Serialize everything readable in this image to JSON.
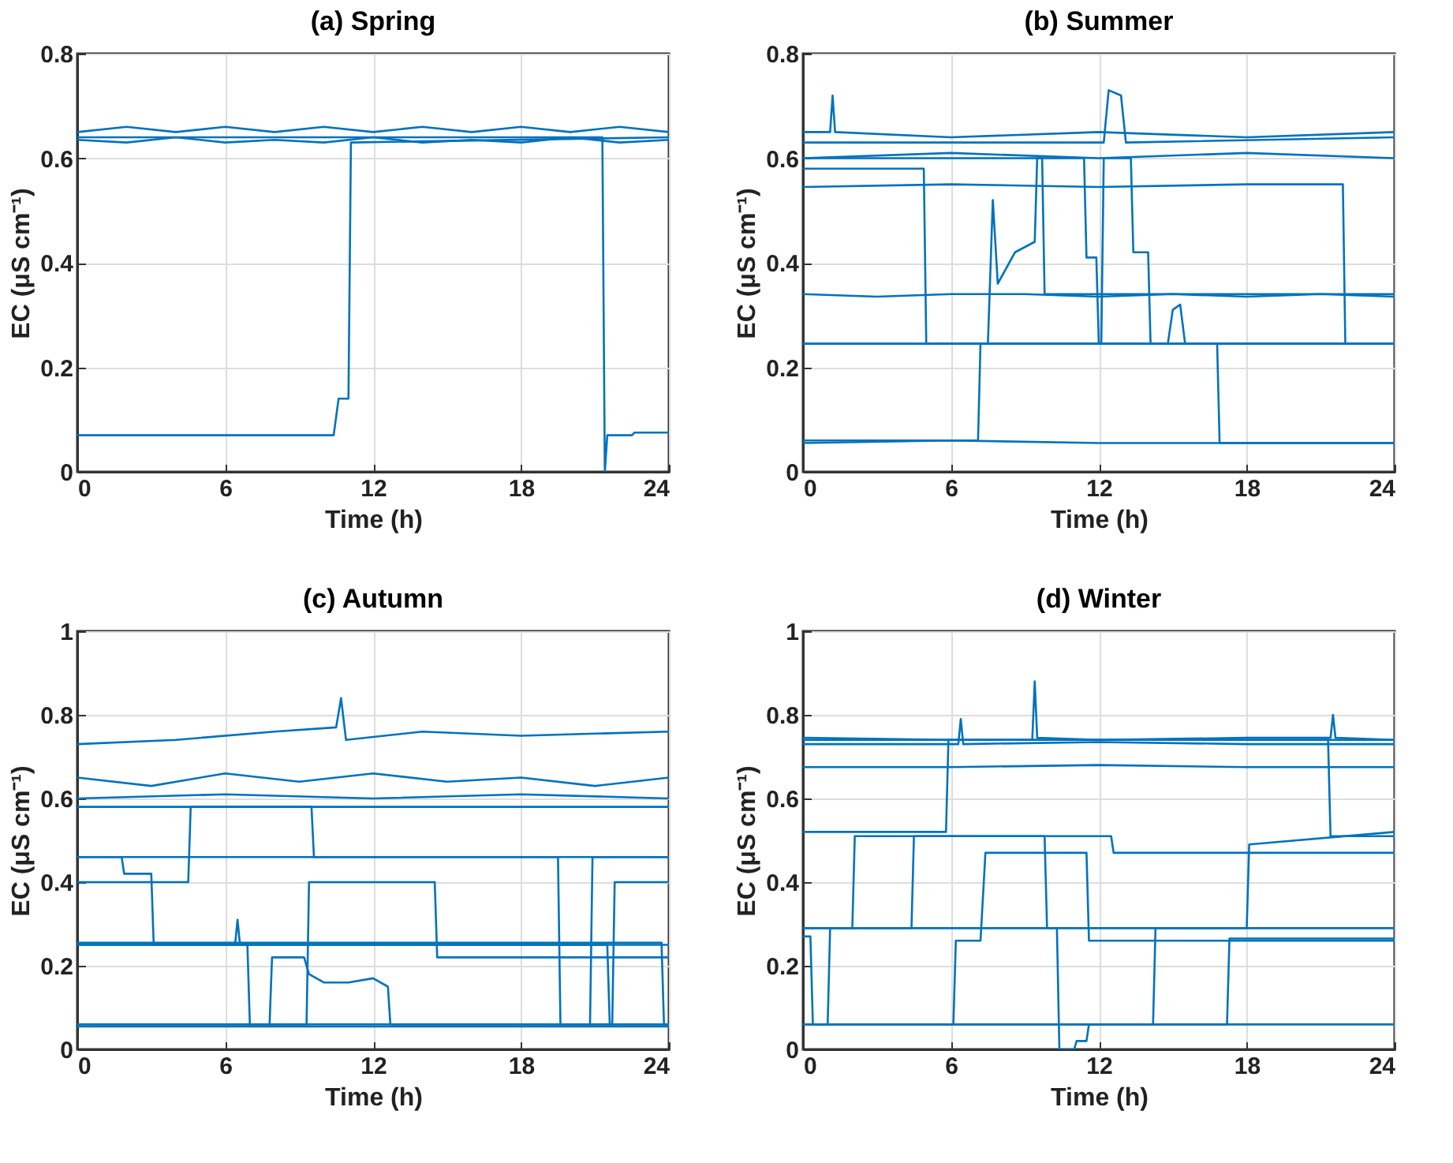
{
  "chart_data": [
    {
      "type": "line",
      "title": "(a) Spring",
      "xlabel": "Time (h)",
      "ylabel": "EC (μS cm⁻¹)",
      "xlim": [
        0,
        24
      ],
      "xticks": [
        0,
        6,
        12,
        18,
        24
      ],
      "ylim": [
        0,
        0.8
      ],
      "yticks": [
        0,
        0.2,
        0.4,
        0.6,
        0.8
      ],
      "grid": true,
      "series": [
        {
          "color": "#0072bd",
          "x": [
            0,
            2,
            4,
            6,
            8,
            10,
            12,
            14,
            16,
            18,
            20,
            22,
            24
          ],
          "values": [
            0.65,
            0.66,
            0.65,
            0.66,
            0.65,
            0.66,
            0.65,
            0.66,
            0.65,
            0.66,
            0.65,
            0.66,
            0.65
          ]
        },
        {
          "color": "#0072bd",
          "x": [
            0,
            2,
            4,
            6,
            8,
            10,
            12,
            14,
            16,
            18,
            20,
            22,
            24
          ],
          "values": [
            0.635,
            0.63,
            0.64,
            0.63,
            0.635,
            0.63,
            0.64,
            0.63,
            0.635,
            0.63,
            0.64,
            0.63,
            0.635
          ]
        },
        {
          "color": "#0072bd",
          "x": [
            0,
            10.4,
            10.6,
            11.0,
            11.1,
            24
          ],
          "values": [
            0.07,
            0.07,
            0.14,
            0.14,
            0.63,
            0.64
          ]
        },
        {
          "color": "#0072bd",
          "x": [
            0,
            21.3,
            21.4,
            21.5,
            22.5,
            22.6,
            24
          ],
          "values": [
            0.64,
            0.64,
            0,
            0.07,
            0.07,
            0.075,
            0.075
          ]
        }
      ]
    },
    {
      "type": "line",
      "title": "(b) Summer",
      "xlabel": "Time (h)",
      "ylabel": "EC (μS cm⁻¹)",
      "xlim": [
        0,
        24
      ],
      "xticks": [
        0,
        6,
        12,
        18,
        24
      ],
      "ylim": [
        0,
        0.8
      ],
      "yticks": [
        0,
        0.2,
        0.4,
        0.6,
        0.8
      ],
      "grid": true,
      "series": [
        {
          "color": "#0072bd",
          "x": [
            0,
            1.1,
            1.2,
            1.3,
            6,
            12,
            18,
            24
          ],
          "values": [
            0.65,
            0.65,
            0.72,
            0.65,
            0.64,
            0.65,
            0.64,
            0.65
          ]
        },
        {
          "color": "#0072bd",
          "x": [
            0,
            12.2,
            12.4,
            12.9,
            13.1,
            24
          ],
          "values": [
            0.63,
            0.63,
            0.73,
            0.72,
            0.63,
            0.64
          ]
        },
        {
          "color": "#0072bd",
          "x": [
            0,
            6,
            12,
            18,
            24
          ],
          "values": [
            0.6,
            0.61,
            0.6,
            0.61,
            0.6
          ]
        },
        {
          "color": "#0072bd",
          "x": [
            0,
            4.9,
            5.0,
            24
          ],
          "values": [
            0.58,
            0.58,
            0.245,
            0.245
          ]
        },
        {
          "color": "#0072bd",
          "x": [
            0,
            6,
            12,
            18,
            21.9,
            22,
            24
          ],
          "values": [
            0.545,
            0.55,
            0.545,
            0.55,
            0.55,
            0.245,
            0.245
          ]
        },
        {
          "color": "#0072bd",
          "x": [
            0,
            3,
            6,
            9,
            12,
            15,
            18,
            21,
            24
          ],
          "values": [
            0.34,
            0.335,
            0.34,
            0.34,
            0.335,
            0.34,
            0.335,
            0.34,
            0.335
          ]
        },
        {
          "color": "#0072bd",
          "x": [
            0,
            7.5,
            7.7,
            7.9,
            8.6,
            9.4,
            9.5,
            9.7,
            9.8,
            24
          ],
          "values": [
            0.245,
            0.245,
            0.52,
            0.36,
            0.42,
            0.44,
            0.6,
            0.6,
            0.34,
            0.34
          ]
        },
        {
          "color": "#0072bd",
          "x": [
            0,
            11.4,
            11.5,
            11.9,
            12.0,
            24
          ],
          "values": [
            0.6,
            0.6,
            0.41,
            0.41,
            0.245,
            0.245
          ]
        },
        {
          "color": "#0072bd",
          "x": [
            0,
            12.1,
            12.2,
            13.3,
            13.4,
            14,
            14.1,
            24
          ],
          "values": [
            0.245,
            0.245,
            0.6,
            0.6,
            0.42,
            0.42,
            0.245,
            0.245
          ]
        },
        {
          "color": "#0072bd",
          "x": [
            0,
            14.8,
            15,
            15.3,
            15.5,
            24
          ],
          "values": [
            0.245,
            0.245,
            0.31,
            0.32,
            0.245,
            0.245
          ]
        },
        {
          "color": "#0072bd",
          "x": [
            0,
            7.1,
            7.2,
            16.8,
            16.9,
            24
          ],
          "values": [
            0.06,
            0.06,
            0.245,
            0.245,
            0.055,
            0.055
          ]
        },
        {
          "color": "#0072bd",
          "x": [
            0,
            6,
            12,
            18,
            24
          ],
          "values": [
            0.055,
            0.06,
            0.055,
            0.055,
            0.055
          ]
        }
      ]
    },
    {
      "type": "line",
      "title": "(c) Autumn",
      "xlabel": "Time (h)",
      "ylabel": "EC (μS cm⁻¹)",
      "xlim": [
        0,
        24
      ],
      "xticks": [
        0,
        6,
        12,
        18,
        24
      ],
      "ylim": [
        0,
        1
      ],
      "yticks": [
        0,
        0.2,
        0.4,
        0.6,
        0.8,
        1
      ],
      "grid": true,
      "series": [
        {
          "color": "#0072bd",
          "x": [
            0,
            4,
            8,
            10.5,
            10.7,
            10.9,
            14,
            18,
            24
          ],
          "values": [
            0.73,
            0.74,
            0.76,
            0.77,
            0.84,
            0.74,
            0.76,
            0.75,
            0.76
          ]
        },
        {
          "color": "#0072bd",
          "x": [
            0,
            3,
            6,
            9,
            12,
            15,
            18,
            21,
            24
          ],
          "values": [
            0.65,
            0.63,
            0.66,
            0.64,
            0.66,
            0.64,
            0.65,
            0.63,
            0.65
          ]
        },
        {
          "color": "#0072bd",
          "x": [
            0,
            6,
            12,
            18,
            24
          ],
          "values": [
            0.6,
            0.61,
            0.6,
            0.61,
            0.6
          ]
        },
        {
          "color": "#0072bd",
          "x": [
            0,
            9.5,
            9.6,
            24
          ],
          "values": [
            0.58,
            0.58,
            0.46,
            0.46
          ]
        },
        {
          "color": "#0072bd",
          "x": [
            0,
            1.8,
            1.9,
            3.0,
            3.1,
            24
          ],
          "values": [
            0.46,
            0.46,
            0.42,
            0.42,
            0.25,
            0.25
          ]
        },
        {
          "color": "#0072bd",
          "x": [
            0,
            4.5,
            4.6,
            24
          ],
          "values": [
            0.4,
            0.4,
            0.58,
            0.58
          ]
        },
        {
          "color": "#0072bd",
          "x": [
            0,
            6.4,
            6.5,
            6.6,
            6.9,
            7.0,
            24
          ],
          "values": [
            0.25,
            0.25,
            0.31,
            0.25,
            0.25,
            0.06,
            0.06
          ]
        },
        {
          "color": "#0072bd",
          "x": [
            0,
            7.8,
            7.9,
            9.2,
            9.4,
            10,
            11,
            12,
            12.6,
            12.7,
            24
          ],
          "values": [
            0.06,
            0.06,
            0.22,
            0.22,
            0.18,
            0.16,
            0.16,
            0.17,
            0.15,
            0.06,
            0.06
          ]
        },
        {
          "color": "#0072bd",
          "x": [
            0,
            9.3,
            9.4,
            14.5,
            14.6,
            24
          ],
          "values": [
            0.06,
            0.06,
            0.4,
            0.4,
            0.22,
            0.22
          ]
        },
        {
          "color": "#0072bd",
          "x": [
            0,
            19.5,
            19.6,
            20.8,
            20.9,
            24
          ],
          "values": [
            0.46,
            0.46,
            0.06,
            0.06,
            0.46,
            0.46
          ]
        },
        {
          "color": "#0072bd",
          "x": [
            0,
            21.5,
            21.6,
            21.7,
            21.8,
            24
          ],
          "values": [
            0.25,
            0.25,
            0.06,
            0.06,
            0.4,
            0.4
          ]
        },
        {
          "color": "#0072bd",
          "x": [
            0,
            23.7,
            23.8,
            24
          ],
          "values": [
            0.255,
            0.255,
            0.06,
            0.06
          ]
        },
        {
          "color": "#0072bd",
          "x": [
            0,
            6,
            12,
            18,
            24
          ],
          "values": [
            0.055,
            0.055,
            0.055,
            0.055,
            0.055
          ]
        }
      ]
    },
    {
      "type": "line",
      "title": "(d) Winter",
      "xlabel": "Time (h)",
      "ylabel": "EC (μS cm⁻¹)",
      "xlim": [
        0,
        24
      ],
      "xticks": [
        0,
        6,
        12,
        18,
        24
      ],
      "ylim": [
        0,
        1
      ],
      "yticks": [
        0,
        0.2,
        0.4,
        0.6,
        0.8,
        1
      ],
      "grid": true,
      "series": [
        {
          "color": "#0072bd",
          "x": [
            0,
            6,
            9.3,
            9.4,
            9.5,
            12,
            18,
            21.4,
            21.5,
            21.6,
            24
          ],
          "values": [
            0.745,
            0.74,
            0.74,
            0.88,
            0.745,
            0.74,
            0.745,
            0.745,
            0.8,
            0.745,
            0.74
          ]
        },
        {
          "color": "#0072bd",
          "x": [
            0,
            6.3,
            6.4,
            6.5,
            12,
            18,
            24
          ],
          "values": [
            0.73,
            0.73,
            0.79,
            0.73,
            0.735,
            0.73,
            0.73
          ]
        },
        {
          "color": "#0072bd",
          "x": [
            0,
            6,
            12,
            18,
            24
          ],
          "values": [
            0.675,
            0.675,
            0.68,
            0.675,
            0.675
          ]
        },
        {
          "color": "#0072bd",
          "x": [
            0,
            5.8,
            5.9,
            24
          ],
          "values": [
            0.52,
            0.52,
            0.74,
            0.74
          ]
        },
        {
          "color": "#0072bd",
          "x": [
            0,
            2,
            2.1,
            9.8,
            9.9,
            24
          ],
          "values": [
            0.29,
            0.29,
            0.51,
            0.51,
            0.29,
            0.29
          ]
        },
        {
          "color": "#0072bd",
          "x": [
            0,
            4.4,
            4.5,
            12.5,
            12.6,
            24
          ],
          "values": [
            0.29,
            0.29,
            0.51,
            0.51,
            0.47,
            0.47
          ]
        },
        {
          "color": "#0072bd",
          "x": [
            0,
            6.1,
            6.2,
            7.2,
            7.4,
            11.5,
            11.6,
            24
          ],
          "values": [
            0.06,
            0.06,
            0.26,
            0.26,
            0.47,
            0.47,
            0.26,
            0.26
          ]
        },
        {
          "color": "#0072bd",
          "x": [
            0,
            10.3,
            10.4,
            11.0,
            11.1,
            11.5,
            11.6,
            24
          ],
          "values": [
            0.29,
            0.29,
            0,
            0,
            0.02,
            0.02,
            0.06,
            0.06
          ]
        },
        {
          "color": "#0072bd",
          "x": [
            0,
            14.2,
            14.3,
            18.0,
            18.1,
            24
          ],
          "values": [
            0.06,
            0.06,
            0.29,
            0.29,
            0.49,
            0.52
          ]
        },
        {
          "color": "#0072bd",
          "x": [
            0,
            17.2,
            17.3,
            24
          ],
          "values": [
            0.06,
            0.06,
            0.265,
            0.265
          ]
        },
        {
          "color": "#0072bd",
          "x": [
            0,
            21.3,
            21.4,
            24
          ],
          "values": [
            0.74,
            0.74,
            0.51,
            0.51
          ]
        },
        {
          "color": "#0072bd",
          "x": [
            0,
            0.3,
            0.4,
            1.0,
            1.1,
            24
          ],
          "values": [
            0.27,
            0.27,
            0.06,
            0.06,
            0.29,
            0.29
          ]
        },
        {
          "color": "#0072bd",
          "x": [
            0,
            6,
            12,
            18,
            24
          ],
          "values": [
            0.06,
            0.06,
            0.06,
            0.06,
            0.06
          ]
        }
      ]
    }
  ]
}
